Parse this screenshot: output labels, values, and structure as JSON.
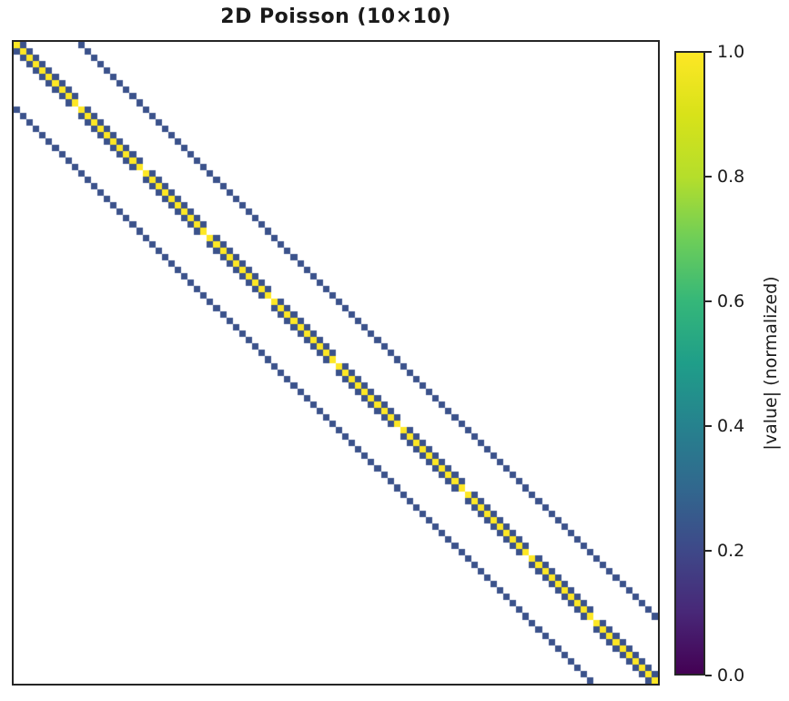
{
  "title": "2D Poisson (10×10)",
  "chart_data": {
    "type": "heatmap",
    "subtype": "sparse-matrix-spy",
    "title": "2D Poisson (10×10)",
    "matrix_rows": 100,
    "matrix_cols": 100,
    "grid": "10×10",
    "description": "Pentadiagonal 2D Poisson (5-point stencil) matrix on a 10×10 grid; nonzero entries shown as |value| normalized by the diagonal value 4. Zero entries are white.",
    "block_size": 10,
    "diagonals": [
      {
        "offset": 0,
        "normalized_value": 1.0
      },
      {
        "offset": 1,
        "normalized_value": 0.25,
        "gap_every": 10
      },
      {
        "offset": -1,
        "normalized_value": 0.25,
        "gap_every": 10
      },
      {
        "offset": 10,
        "normalized_value": 0.25
      },
      {
        "offset": -10,
        "normalized_value": 0.25
      }
    ],
    "value_colors": {
      "1": "#fde725",
      "0.25": "#3b528b"
    },
    "background_color": "#ffffff",
    "colormap": "viridis",
    "axes": {
      "x_ticks": [],
      "y_ticks": [],
      "grid": false
    },
    "colorbar": {
      "label": "|value| (normalized)",
      "range": [
        0.0,
        1.0
      ],
      "ticks": [
        "0.0",
        "0.2",
        "0.4",
        "0.6",
        "0.8",
        "1.0"
      ],
      "gradient_stops_bottom_to_top": [
        "#440154",
        "#482878",
        "#3e4989",
        "#31688e",
        "#26828e",
        "#1f9e89",
        "#35b779",
        "#6ece58",
        "#b5de2b",
        "#d8e219",
        "#fde725"
      ]
    }
  }
}
